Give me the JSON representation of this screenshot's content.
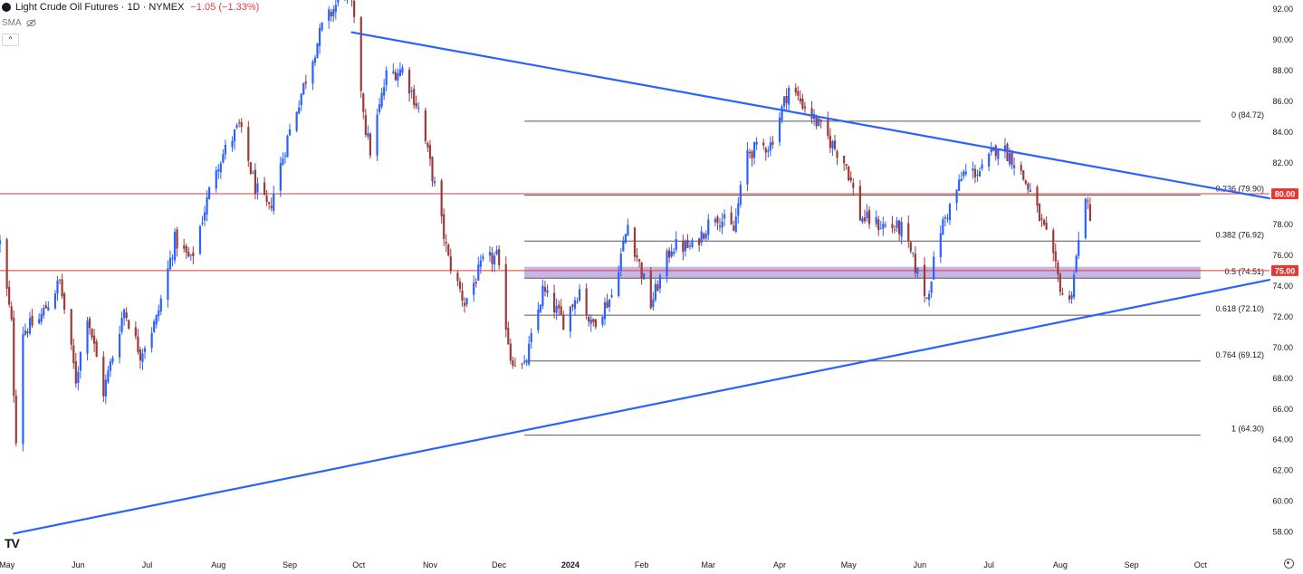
{
  "header": {
    "title": "Light Crude Oil Futures · 1D · NYMEX",
    "change": "−1.05 (−1.33%)",
    "indicator": "SMA",
    "collapse_label": "^"
  },
  "colors": {
    "up": "#2962ff",
    "down": "#9b3a3a",
    "trendline": "#2962ff",
    "hline": "#e53935",
    "fib": "#555555",
    "zone": "#b39ddb",
    "axis_text": "#131722"
  },
  "chart_data": {
    "type": "candlestick",
    "title": "Light Crude Oil Futures · 1D · NYMEX",
    "xlabel": "",
    "ylabel": "",
    "ylim": [
      56.8,
      92.6
    ],
    "x_range": [
      "2023-04-28",
      "2024-10-31"
    ],
    "y_ticks": [
      "58.00",
      "60.00",
      "62.00",
      "64.00",
      "66.00",
      "68.00",
      "70.00",
      "72.00",
      "74.00",
      "76.00",
      "78.00",
      "80.00",
      "82.00",
      "84.00",
      "86.00",
      "88.00",
      "90.00",
      "92.00"
    ],
    "y_top_partial_label": "92.00",
    "x_ticks": [
      {
        "label": "May",
        "date": "2023-05-01"
      },
      {
        "label": "Jun",
        "date": "2023-06-01"
      },
      {
        "label": "Jul",
        "date": "2023-07-01"
      },
      {
        "label": "Aug",
        "date": "2023-08-01"
      },
      {
        "label": "Sep",
        "date": "2023-09-01"
      },
      {
        "label": "Oct",
        "date": "2023-10-01"
      },
      {
        "label": "Nov",
        "date": "2023-11-01"
      },
      {
        "label": "Dec",
        "date": "2023-12-01"
      },
      {
        "label": "2024",
        "date": "2024-01-01",
        "bold": true
      },
      {
        "label": "Feb",
        "date": "2024-02-01"
      },
      {
        "label": "Mar",
        "date": "2024-03-01"
      },
      {
        "label": "Apr",
        "date": "2024-04-01"
      },
      {
        "label": "May",
        "date": "2024-05-01"
      },
      {
        "label": "Jun",
        "date": "2024-06-01"
      },
      {
        "label": "Jul",
        "date": "2024-07-01"
      },
      {
        "label": "Aug",
        "date": "2024-08-01"
      },
      {
        "label": "Sep",
        "date": "2024-09-01"
      },
      {
        "label": "Oct",
        "date": "2024-10-01"
      }
    ],
    "close_path": [
      [
        "2023-04-28",
        76.8
      ],
      [
        "2023-05-03",
        71.5
      ],
      [
        "2023-05-04",
        67.2
      ],
      [
        "2023-05-05",
        64.2
      ],
      [
        "2023-05-08",
        71.1
      ],
      [
        "2023-05-15",
        71.8
      ],
      [
        "2023-05-24",
        74.3
      ],
      [
        "2023-05-31",
        67.9
      ],
      [
        "2023-06-05",
        72.2
      ],
      [
        "2023-06-12",
        67.1
      ],
      [
        "2023-06-21",
        72.5
      ],
      [
        "2023-06-28",
        69.6
      ],
      [
        "2023-07-05",
        71.8
      ],
      [
        "2023-07-13",
        77.0
      ],
      [
        "2023-07-20",
        75.6
      ],
      [
        "2023-07-31",
        81.8
      ],
      [
        "2023-08-10",
        84.4
      ],
      [
        "2023-08-17",
        80.4
      ],
      [
        "2023-08-23",
        78.9
      ],
      [
        "2023-08-31",
        83.6
      ],
      [
        "2023-09-08",
        87.5
      ],
      [
        "2023-09-15",
        90.8
      ],
      [
        "2023-09-27",
        93.7
      ],
      [
        "2023-10-04",
        84.2
      ],
      [
        "2023-10-06",
        82.8
      ],
      [
        "2023-10-13",
        87.7
      ],
      [
        "2023-10-20",
        88.1
      ],
      [
        "2023-10-27",
        85.5
      ],
      [
        "2023-11-03",
        80.5
      ],
      [
        "2023-11-09",
        75.7
      ],
      [
        "2023-11-16",
        72.9
      ],
      [
        "2023-11-24",
        75.5
      ],
      [
        "2023-11-30",
        75.9
      ],
      [
        "2023-12-06",
        69.4
      ],
      [
        "2023-12-12",
        68.6
      ],
      [
        "2023-12-20",
        73.7
      ],
      [
        "2023-12-29",
        71.7
      ],
      [
        "2024-01-05",
        73.8
      ],
      [
        "2024-01-10",
        71.4
      ],
      [
        "2024-01-19",
        73.4
      ],
      [
        "2024-01-26",
        78.0
      ],
      [
        "2024-02-05",
        72.8
      ],
      [
        "2024-02-14",
        76.6
      ],
      [
        "2024-02-23",
        76.5
      ],
      [
        "2024-03-04",
        78.7
      ],
      [
        "2024-03-12",
        77.6
      ],
      [
        "2024-03-18",
        82.7
      ],
      [
        "2024-03-28",
        83.2
      ],
      [
        "2024-04-05",
        86.9
      ],
      [
        "2024-04-12",
        85.7
      ],
      [
        "2024-04-23",
        83.4
      ],
      [
        "2024-04-30",
        81.9
      ],
      [
        "2024-05-06",
        78.5
      ],
      [
        "2024-05-14",
        78.0
      ],
      [
        "2024-05-24",
        77.7
      ],
      [
        "2024-06-04",
        73.2
      ],
      [
        "2024-06-10",
        77.7
      ],
      [
        "2024-06-20",
        81.3
      ],
      [
        "2024-06-28",
        81.5
      ],
      [
        "2024-07-05",
        83.2
      ],
      [
        "2024-07-12",
        82.2
      ],
      [
        "2024-07-19",
        80.1
      ],
      [
        "2024-07-26",
        77.2
      ],
      [
        "2024-08-02",
        73.5
      ],
      [
        "2024-08-05",
        72.9
      ],
      [
        "2024-08-09",
        76.8
      ],
      [
        "2024-08-12",
        80.1
      ],
      [
        "2024-08-13",
        79.0
      ],
      [
        "2024-08-14",
        77.98
      ]
    ],
    "overlays": {
      "trendlines": [
        {
          "name": "descending-resistance",
          "points": [
            [
              "2023-09-28",
              90.5
            ],
            [
              "2024-10-31",
              79.7
            ]
          ]
        },
        {
          "name": "ascending-support",
          "points": [
            [
              "2023-05-04",
              57.9
            ],
            [
              "2024-10-31",
              74.4
            ]
          ]
        }
      ],
      "horizontal_levels": [
        {
          "value": 80.0,
          "label": "80.00"
        },
        {
          "value": 75.0,
          "label": "75.00"
        }
      ],
      "zone": {
        "from": 74.51,
        "to": 75.25,
        "start": "2023-12-12",
        "end": "2024-10-01"
      },
      "fib_retracement": {
        "start": "2023-12-12",
        "end": "2024-10-01",
        "levels": [
          {
            "ratio": "0",
            "value": 84.72,
            "label": "0 (84.72)"
          },
          {
            "ratio": "0.236",
            "value": 79.9,
            "label": "0.236 (79.90)"
          },
          {
            "ratio": "0.382",
            "value": 76.92,
            "label": "0.382 (76.92)"
          },
          {
            "ratio": "0.5",
            "value": 74.51,
            "label": "0.5 (74.51)"
          },
          {
            "ratio": "0.618",
            "value": 72.1,
            "label": "0.618 (72.10)"
          },
          {
            "ratio": "0.764",
            "value": 69.12,
            "label": "0.764 (69.12)"
          },
          {
            "ratio": "1",
            "value": 64.3,
            "label": "1 (64.30)"
          }
        ]
      }
    }
  }
}
